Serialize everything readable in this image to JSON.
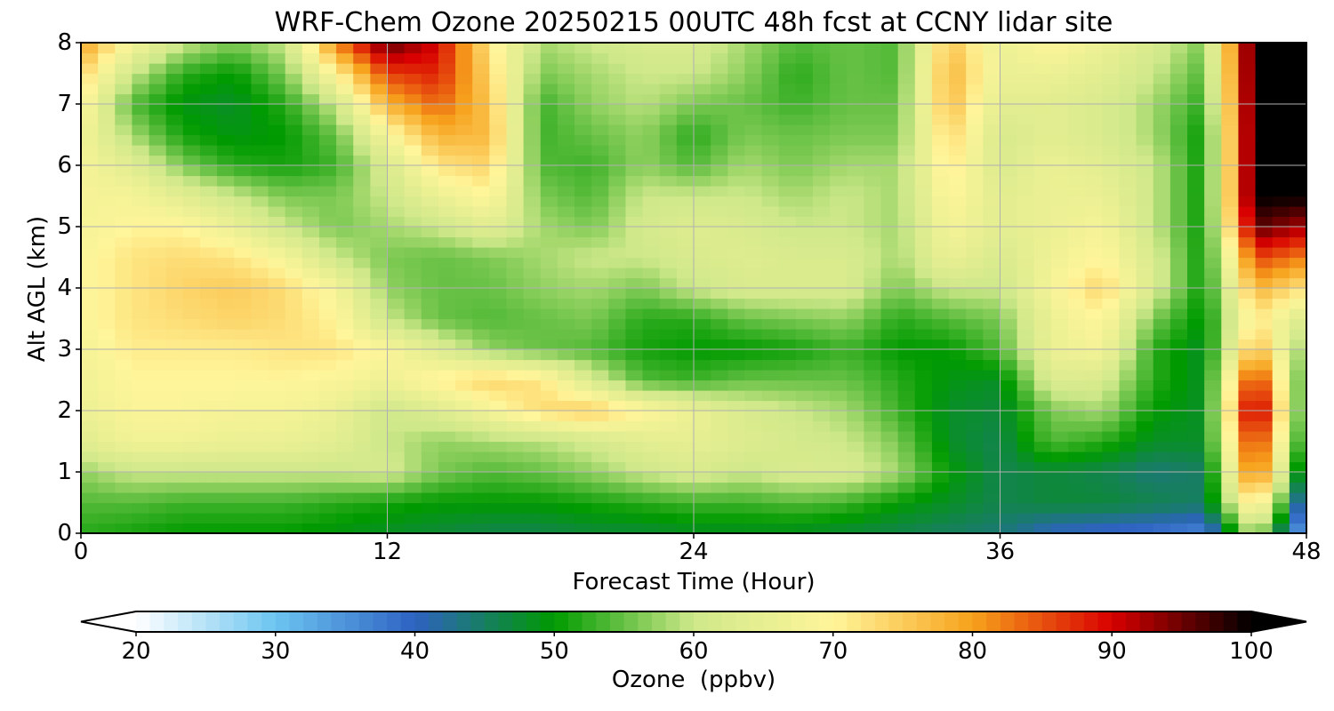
{
  "chart_data": {
    "type": "heatmap",
    "title": "WRF-Chem Ozone  20250215 00UTC 48h fcst at CCNY lidar site",
    "xlabel": "Forecast Time (Hour)",
    "ylabel": "Alt AGL (km)",
    "xlim": [
      0,
      48
    ],
    "ylim": [
      0,
      8
    ],
    "x_ticks": [
      "0",
      "12",
      "24",
      "36",
      "48"
    ],
    "y_ticks": [
      "0",
      "1",
      "2",
      "3",
      "4",
      "5",
      "6",
      "7",
      "8"
    ],
    "grid": true,
    "colorbar": {
      "label": "Ozone  (ppbv)",
      "range": [
        20,
        100
      ],
      "ticks": [
        "20",
        "30",
        "40",
        "50",
        "60",
        "70",
        "80",
        "90",
        "100"
      ],
      "extend": "both",
      "colors": [
        "#ffffff",
        "#6cc5f0",
        "#2e62c2",
        "#009a00",
        "#cfe88a",
        "#fff59a",
        "#f7a21c",
        "#d80000",
        "#000000"
      ]
    },
    "x_hours": [
      0,
      2,
      4,
      6,
      8,
      10,
      12,
      14,
      16,
      18,
      20,
      22,
      24,
      26,
      28,
      30,
      32,
      34,
      36,
      38,
      40,
      42,
      44,
      46,
      48
    ],
    "alt_km": [
      0,
      0.5,
      1,
      1.5,
      2,
      2.5,
      3,
      3.5,
      4,
      4.5,
      5,
      5.5,
      6,
      6.5,
      7,
      7.5,
      8
    ],
    "ozone_ppbv": [
      [
        52,
        51,
        50,
        50,
        50,
        49,
        48,
        47,
        46,
        46,
        47,
        47,
        48,
        48,
        48,
        47,
        46,
        45,
        44,
        40,
        39,
        38,
        36,
        60,
        30
      ],
      [
        54,
        54,
        53,
        53,
        53,
        52,
        51,
        50,
        50,
        50,
        51,
        52,
        53,
        53,
        54,
        53,
        50,
        48,
        46,
        47,
        47,
        46,
        45,
        74,
        36
      ],
      [
        57,
        60,
        60,
        60,
        60,
        60,
        61,
        56,
        54,
        55,
        57,
        60,
        62,
        60,
        62,
        62,
        58,
        50,
        46,
        47,
        46,
        44,
        45,
        86,
        42
      ],
      [
        64,
        67,
        67,
        66,
        66,
        64,
        60,
        57,
        58,
        59,
        61,
        64,
        65,
        63,
        61,
        60,
        56,
        48,
        46,
        54,
        52,
        48,
        48,
        90,
        47
      ],
      [
        66,
        69,
        69,
        68,
        68,
        66,
        60,
        63,
        68,
        73,
        75,
        70,
        66,
        62,
        60,
        58,
        53,
        48,
        47,
        56,
        58,
        50,
        48,
        96,
        49
      ],
      [
        67,
        70,
        70,
        70,
        70,
        69,
        67,
        71,
        74,
        72,
        62,
        54,
        53,
        55,
        55,
        55,
        52,
        49,
        48,
        63,
        62,
        52,
        48,
        90,
        50
      ],
      [
        68,
        71,
        71,
        71,
        72,
        72,
        69,
        63,
        57,
        55,
        54,
        51,
        50,
        50,
        51,
        53,
        50,
        50,
        54,
        66,
        68,
        52,
        48,
        78,
        55
      ],
      [
        69,
        72,
        73,
        74,
        73,
        70,
        60,
        55,
        54,
        55,
        56,
        52,
        52,
        55,
        56,
        57,
        52,
        54,
        56,
        66,
        70,
        56,
        49,
        72,
        62
      ],
      [
        69,
        72,
        74,
        75,
        73,
        68,
        57,
        55,
        55,
        57,
        58,
        56,
        60,
        62,
        62,
        62,
        56,
        60,
        60,
        68,
        74,
        62,
        50,
        78,
        72
      ],
      [
        69,
        72,
        73,
        72,
        68,
        60,
        56,
        55,
        56,
        58,
        60,
        60,
        62,
        63,
        62,
        62,
        58,
        66,
        62,
        67,
        70,
        62,
        50,
        86,
        82
      ],
      [
        68,
        70,
        70,
        66,
        60,
        56,
        58,
        60,
        64,
        58,
        56,
        61,
        63,
        62,
        60,
        60,
        58,
        68,
        64,
        66,
        68,
        60,
        50,
        96,
        92
      ],
      [
        68,
        68,
        64,
        60,
        56,
        56,
        60,
        66,
        70,
        56,
        54,
        60,
        60,
        60,
        58,
        60,
        58,
        70,
        64,
        66,
        66,
        60,
        50,
        100,
        100
      ],
      [
        68,
        64,
        56,
        52,
        51,
        53,
        62,
        72,
        74,
        54,
        53,
        57,
        54,
        58,
        56,
        58,
        58,
        72,
        62,
        66,
        64,
        60,
        50,
        100,
        100
      ],
      [
        68,
        58,
        51,
        49,
        50,
        55,
        68,
        78,
        77,
        53,
        55,
        57,
        52,
        56,
        55,
        56,
        56,
        74,
        62,
        64,
        62,
        58,
        50,
        100,
        100
      ],
      [
        70,
        54,
        49,
        48,
        52,
        60,
        78,
        84,
        76,
        53,
        57,
        59,
        56,
        55,
        53,
        55,
        55,
        77,
        64,
        64,
        62,
        58,
        52,
        100,
        100
      ],
      [
        74,
        60,
        52,
        50,
        56,
        70,
        86,
        88,
        74,
        56,
        58,
        60,
        60,
        57,
        52,
        55,
        54,
        78,
        66,
        66,
        64,
        60,
        54,
        100,
        100
      ],
      [
        80,
        68,
        60,
        56,
        60,
        82,
        96,
        90,
        72,
        58,
        60,
        62,
        62,
        58,
        54,
        55,
        54,
        76,
        66,
        70,
        66,
        62,
        56,
        100,
        100
      ]
    ]
  }
}
